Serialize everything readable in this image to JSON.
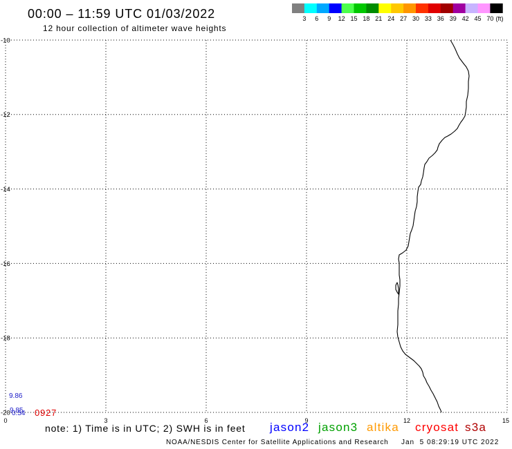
{
  "header": {
    "title": "00:00 – 11:59 UTC 01/03/2022",
    "subtitle": "12 hour collection of altimeter wave heights"
  },
  "colorbar": {
    "colors": [
      "#808080",
      "#00ffff",
      "#00a8ff",
      "#0000ff",
      "#4cff4c",
      "#00c800",
      "#008c00",
      "#ffff00",
      "#ffc800",
      "#ff9600",
      "#ff3200",
      "#e00000",
      "#a00000",
      "#a000a0",
      "#c8b4ff",
      "#ff96ff",
      "#000000"
    ],
    "labels": [
      "3",
      "6",
      "9",
      "12",
      "15",
      "18",
      "21",
      "24",
      "27",
      "30",
      "33",
      "36",
      "39",
      "42",
      "45",
      "70"
    ],
    "unit": "(ft)"
  },
  "map": {
    "latitude_labels": [
      "-10",
      "-12",
      "-14",
      "-16",
      "-18",
      "-20"
    ],
    "longitude_labels": [
      "0",
      "3",
      "6",
      "9",
      "12",
      "15"
    ],
    "wave_height_labels": [
      {
        "text": "9.86",
        "color": "#1c1cc8"
      },
      {
        "text": "9.85",
        "color": "#1c1cc8"
      },
      {
        "text": "0.54",
        "color": "#1c1cc8"
      }
    ],
    "pass_time_label": {
      "text": "0927",
      "color": "#e00000"
    },
    "coastline_color": "#000000"
  },
  "legend": {
    "note": "note: 1) Time is in UTC; 2) SWH is in feet",
    "satellites": [
      {
        "name": "jason2",
        "color": "#0000ff"
      },
      {
        "name": "jason3",
        "color": "#00a000"
      },
      {
        "name": "altika",
        "color": "#ff9900"
      },
      {
        "name": "cryosat",
        "color": "#ff0000"
      },
      {
        "name": "s3a",
        "color": "#b00000"
      }
    ]
  },
  "footer": {
    "credit": "NOAA/NESDIS Center for Satellite Applications and Research",
    "timestamp": "Jan  5 08:29:19 UTC 2022"
  }
}
